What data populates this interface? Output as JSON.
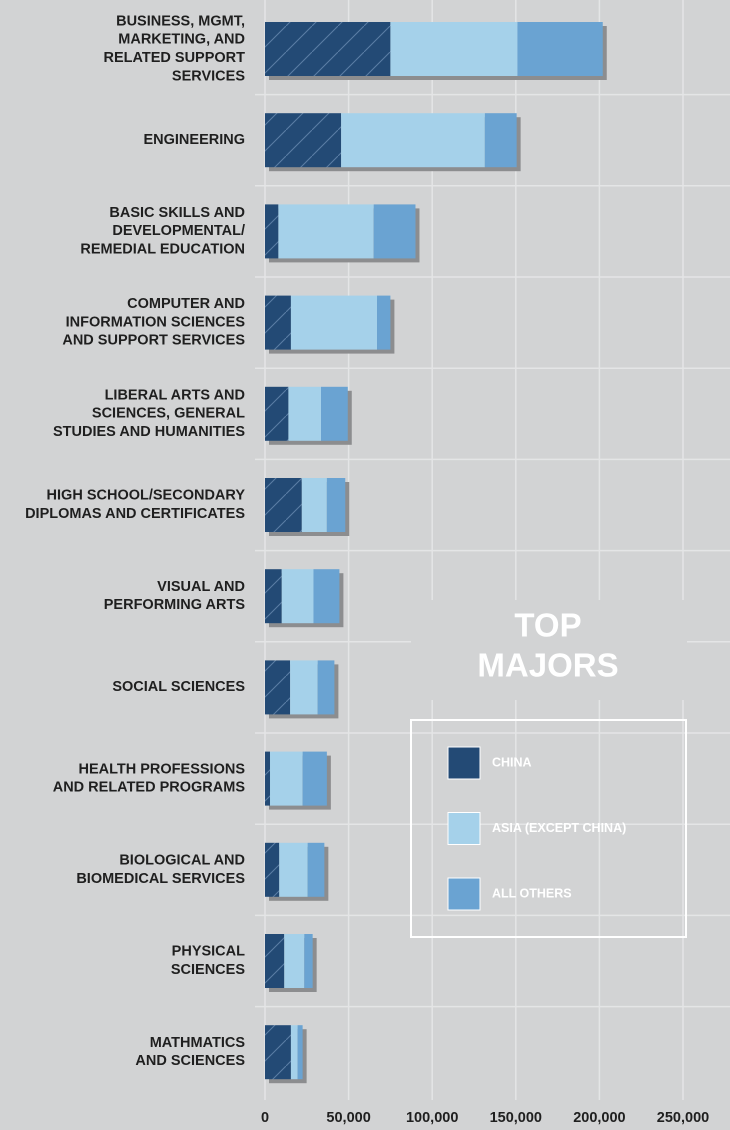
{
  "chart_data": {
    "type": "stacked-bar-horizontal",
    "title": "TOP MAJORS",
    "categories": [
      [
        "BUSINESS, MGMT,",
        "MARKETING, AND",
        "RELATED SUPPORT",
        "SERVICES"
      ],
      [
        "ENGINEERING"
      ],
      [
        "BASIC SKILLS AND",
        "DEVELOPMENTAL/",
        "REMEDIAL EDUCATION"
      ],
      [
        "COMPUTER AND",
        "INFORMATION SCIENCES",
        "AND SUPPORT SERVICES"
      ],
      [
        "LIBERAL ARTS AND",
        "SCIENCES, GENERAL",
        "STUDIES AND HUMANITIES"
      ],
      [
        "HIGH SCHOOL/SECONDARY",
        "DIPLOMAS AND CERTIFICATES"
      ],
      [
        "VISUAL AND",
        "PERFORMING ARTS"
      ],
      [
        "SOCIAL SCIENCES"
      ],
      [
        "HEALTH PROFESSIONS",
        "AND RELATED PROGRAMS"
      ],
      [
        "BIOLOGICAL AND",
        "BIOMEDICAL SERVICES"
      ],
      [
        "PHYSICAL",
        "SCIENCES"
      ],
      [
        "MATHMATICS",
        "AND SCIENCES"
      ]
    ],
    "series": [
      {
        "name": "CHINA",
        "color": "#234a75",
        "values": [
          75000,
          45500,
          8000,
          15500,
          14000,
          22000,
          10000,
          15000,
          3000,
          8500,
          11500,
          15500
        ]
      },
      {
        "name": "ASIA (EXCEPT CHINA)",
        "color": "#a5d1ea",
        "values": [
          76000,
          86000,
          57000,
          51500,
          19500,
          15000,
          19000,
          16500,
          19500,
          17000,
          12000,
          4000
        ]
      },
      {
        "name": "ALL OTHERS",
        "color": "#6aa3d2",
        "values": [
          51000,
          19000,
          25000,
          8000,
          16000,
          11000,
          15500,
          10000,
          14500,
          10000,
          5000,
          3000
        ]
      }
    ],
    "xlim": [
      0,
      250000
    ],
    "xticks": [
      0,
      {
        "value": 50000,
        "label": "50,000"
      },
      {
        "value": 100000,
        "label": "100,000"
      },
      {
        "value": 150000,
        "label": "150,000"
      },
      {
        "value": 200000,
        "label": "200,000"
      },
      {
        "value": 250000,
        "label": "250,000"
      }
    ],
    "grid": true
  }
}
